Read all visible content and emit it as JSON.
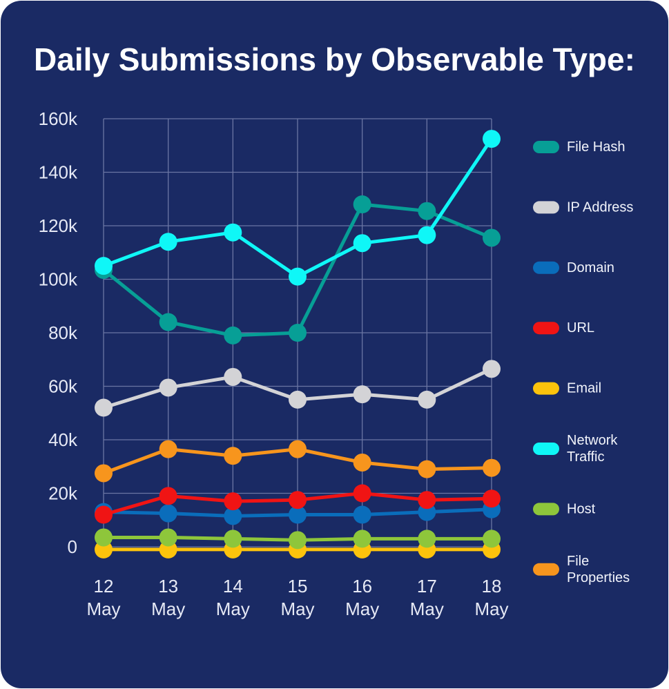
{
  "title": "Daily Submissions by Observable Type:",
  "chart_data": {
    "type": "line",
    "title": "Daily Submissions by Observable Type:",
    "x": [
      "12 May",
      "13 May",
      "14 May",
      "15 May",
      "16 May",
      "17 May",
      "18 May"
    ],
    "x_tick_labels": [
      [
        "12",
        "May"
      ],
      [
        "13",
        "May"
      ],
      [
        "14",
        "May"
      ],
      [
        "15",
        "May"
      ],
      [
        "16",
        "May"
      ],
      [
        "17",
        "May"
      ],
      [
        "18",
        "May"
      ]
    ],
    "y_ticks": [
      0,
      20000,
      40000,
      60000,
      80000,
      100000,
      120000,
      140000,
      160000
    ],
    "y_tick_labels": [
      "0",
      "20k",
      "40k",
      "60k",
      "80k",
      "100k",
      "120k",
      "140k",
      "160k"
    ],
    "ylim": [
      0,
      160000
    ],
    "grid": true,
    "legend_position": "right",
    "series": [
      {
        "name": "File Hash",
        "color": "#079f96",
        "values": [
          103500,
          84000,
          79000,
          80000,
          128000,
          125500,
          115500
        ]
      },
      {
        "name": "IP Address",
        "color": "#d3d3d6",
        "values": [
          52000,
          59500,
          63500,
          55000,
          57000,
          55000,
          66500
        ]
      },
      {
        "name": "Domain",
        "color": "#0a6dbb",
        "values": [
          13000,
          12500,
          11500,
          12000,
          12000,
          13000,
          14000
        ]
      },
      {
        "name": "URL",
        "color": "#f01414",
        "values": [
          12000,
          19000,
          17000,
          17500,
          20000,
          17500,
          18000
        ]
      },
      {
        "name": "Email",
        "color": "#fcc30c",
        "values": [
          -1000,
          -1000,
          -1000,
          -1000,
          -1000,
          -1000,
          -1000
        ]
      },
      {
        "name": "Network Traffic",
        "color": "#0ff7f7",
        "values": [
          105000,
          114000,
          117500,
          101000,
          113500,
          116500,
          152500
        ]
      },
      {
        "name": "Host",
        "color": "#8ec63b",
        "values": [
          3500,
          3500,
          3000,
          2500,
          3000,
          3000,
          3000
        ]
      },
      {
        "name": "File Properties",
        "color": "#f7951d",
        "values": [
          27500,
          36500,
          34000,
          36500,
          31500,
          29000,
          29500
        ]
      }
    ],
    "legend_lines": [
      [
        "File Hash"
      ],
      [
        "IP Address"
      ],
      [
        "Domain"
      ],
      [
        "URL"
      ],
      [
        "Email"
      ],
      [
        "Network",
        "Traffic"
      ],
      [
        "Host"
      ],
      [
        "File",
        "Properties"
      ]
    ],
    "draw_order": [
      "Email",
      "Host",
      "Domain",
      "URL",
      "File Properties",
      "IP Address",
      "File Hash",
      "Network Traffic"
    ]
  }
}
